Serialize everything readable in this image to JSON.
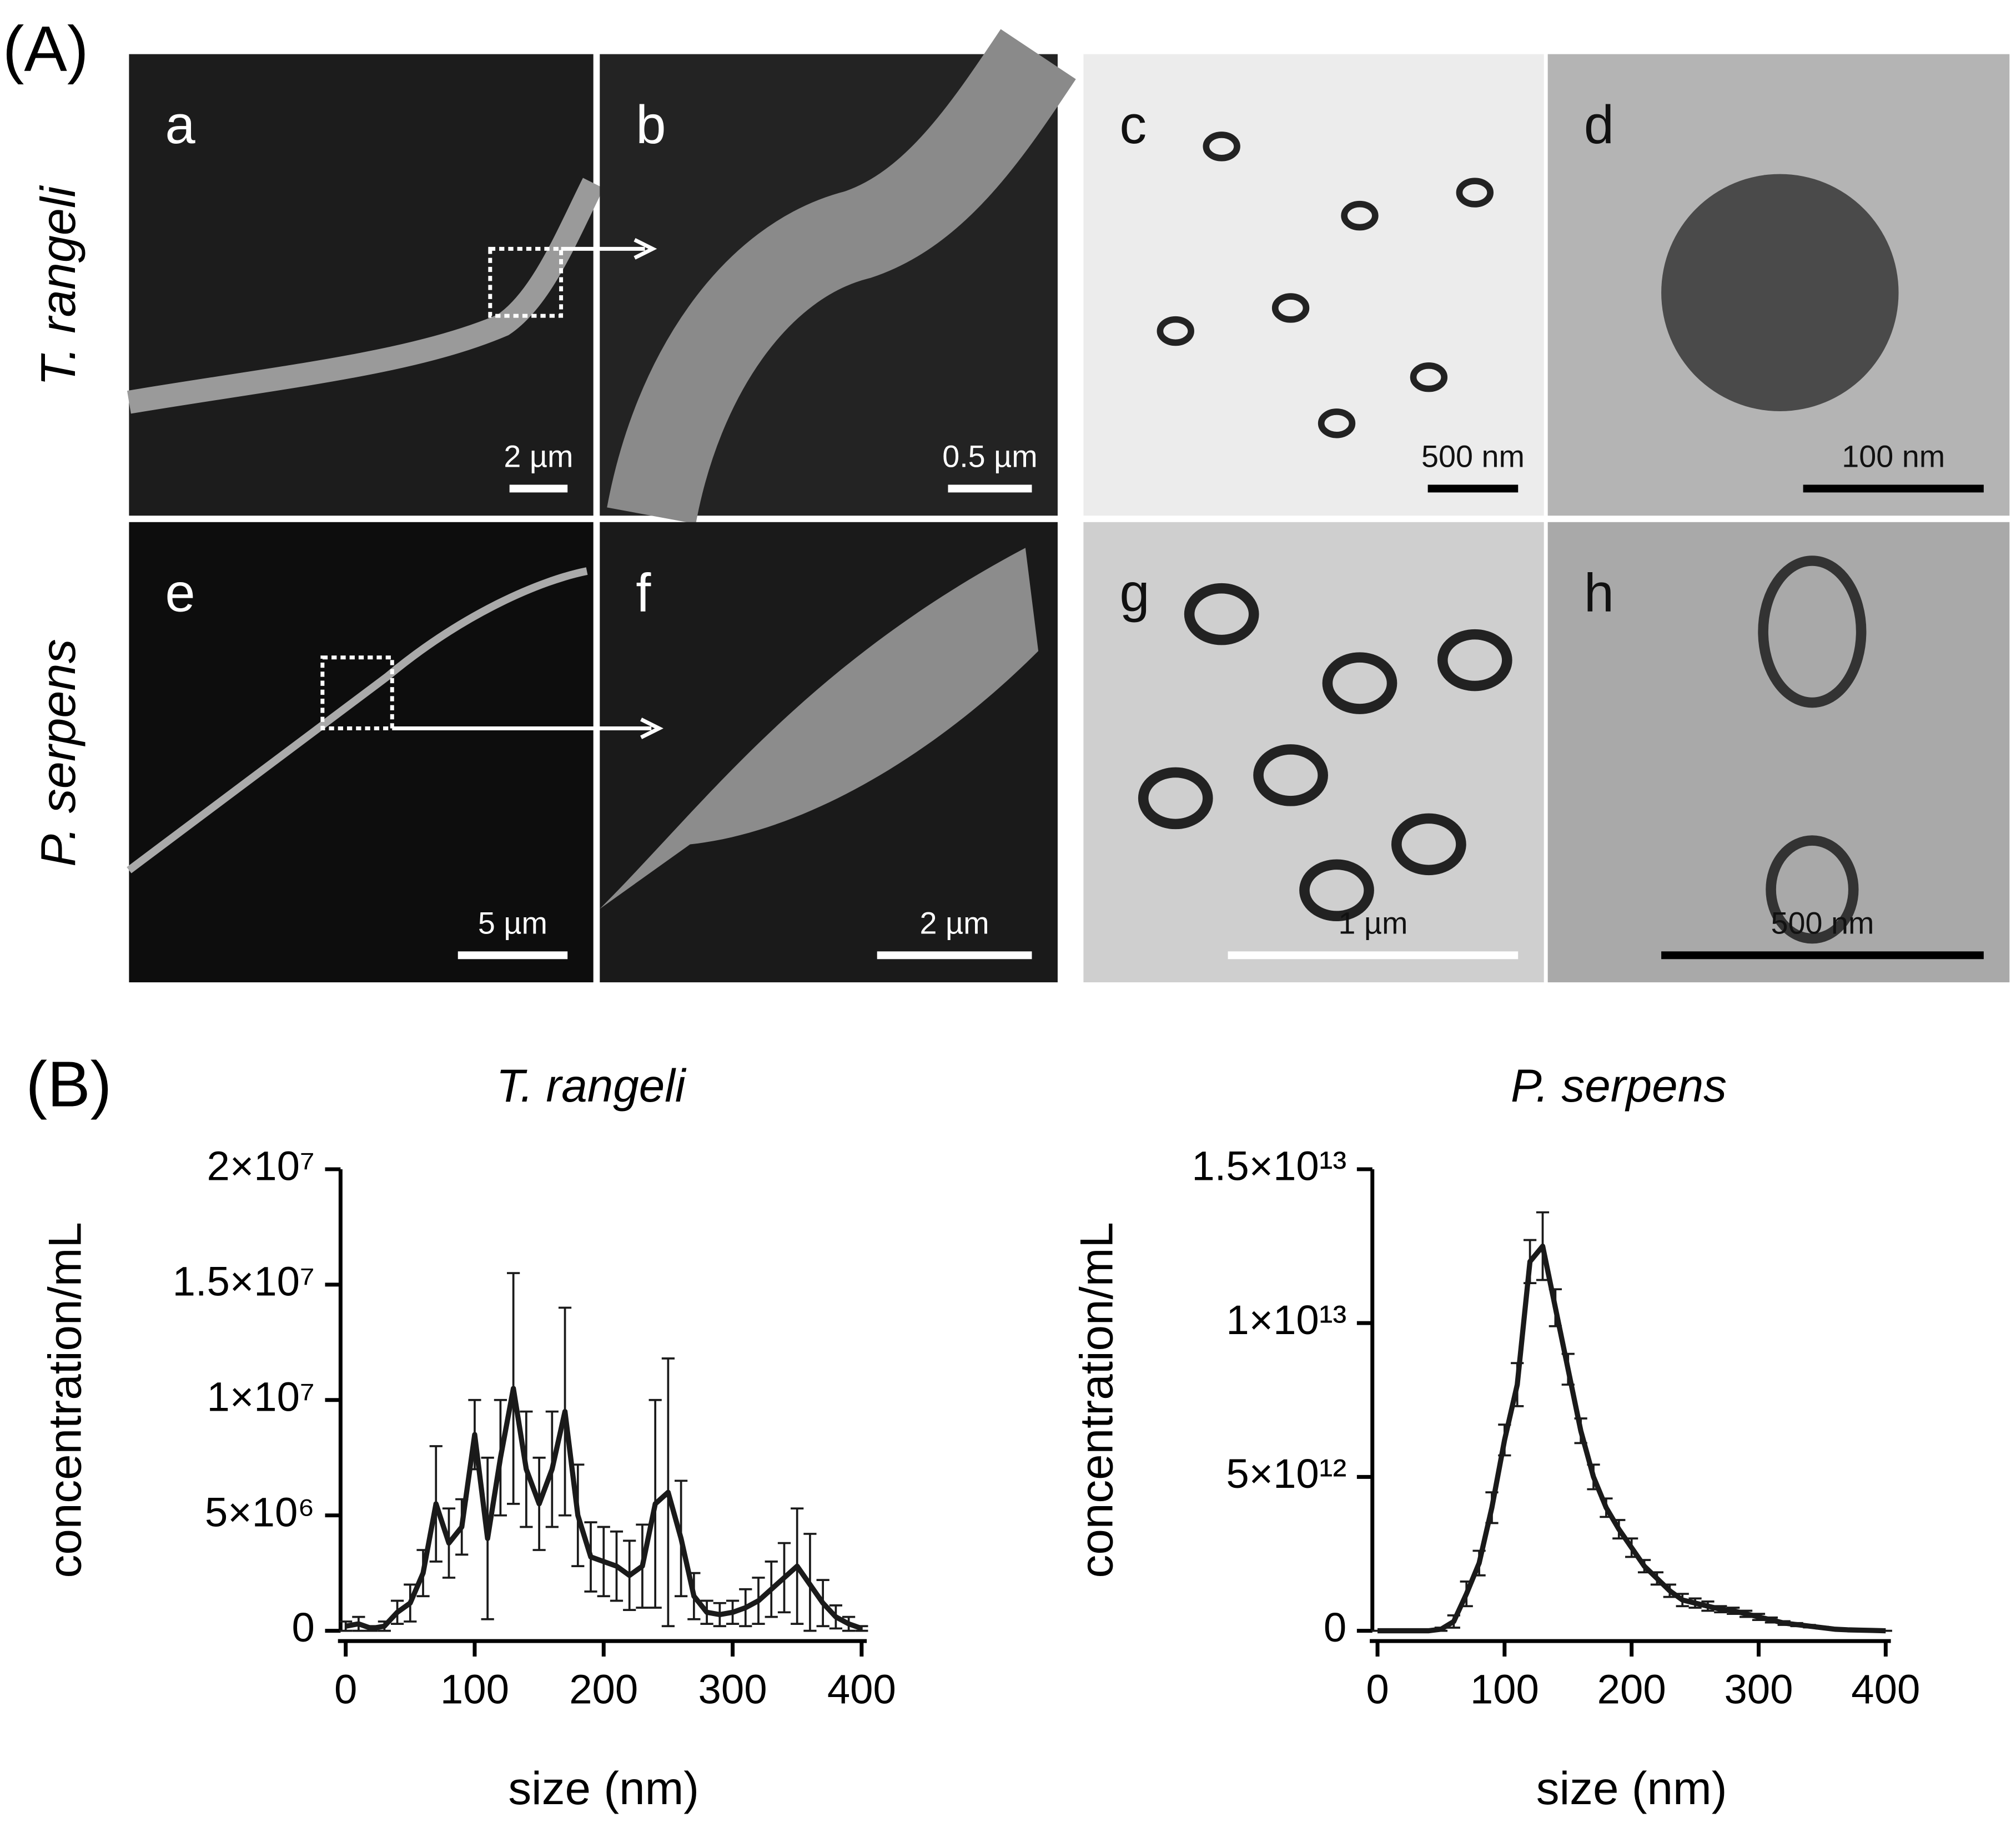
{
  "panel_a": {
    "label": "(A)",
    "rows": [
      "T. rangeli",
      "P. serpens"
    ],
    "panels": [
      {
        "letter": "a",
        "scale": "2 µm"
      },
      {
        "letter": "b",
        "scale": "0.5  µm"
      },
      {
        "letter": "c",
        "scale": "500  nm"
      },
      {
        "letter": "d",
        "scale": "100  nm"
      },
      {
        "letter": "e",
        "scale": "5 µm"
      },
      {
        "letter": "f",
        "scale": "2 µm"
      },
      {
        "letter": "g",
        "scale": "1 µm"
      },
      {
        "letter": "h",
        "scale": "500  nm"
      }
    ]
  },
  "panel_b": {
    "label": "(B)"
  },
  "chart_data": [
    {
      "type": "line",
      "title": "T. rangeli",
      "x_label": "size (nm)",
      "y_label": "concentration/mL",
      "x": [
        0,
        10,
        20,
        30,
        40,
        50,
        60,
        70,
        80,
        90,
        100,
        110,
        120,
        130,
        140,
        150,
        160,
        170,
        180,
        190,
        200,
        210,
        220,
        230,
        240,
        250,
        260,
        270,
        280,
        290,
        300,
        310,
        320,
        330,
        340,
        350,
        360,
        370,
        380,
        390,
        400
      ],
      "series": [
        {
          "color": "#1a1a1a",
          "values": [
            200000,
            300000,
            100000,
            200000,
            800000,
            1200000,
            2500000,
            5500000,
            3800000,
            4500000,
            8500000,
            4000000,
            7500000,
            10500000,
            7000000,
            5500000,
            7000000,
            9500000,
            5000000,
            3200000,
            3000000,
            2800000,
            2400000,
            2800000,
            5500000,
            6000000,
            4000000,
            1500000,
            800000,
            700000,
            800000,
            1000000,
            1300000,
            1800000,
            2300000,
            2800000,
            2000000,
            1200000,
            600000,
            300000,
            100000
          ],
          "errors": [
            200000,
            300000,
            100000,
            200000,
            500000,
            800000,
            1000000,
            2500000,
            1500000,
            1200000,
            1500000,
            3500000,
            2500000,
            5000000,
            2500000,
            2000000,
            2500000,
            4500000,
            2200000,
            1500000,
            1500000,
            1500000,
            1500000,
            1800000,
            4500000,
            5800000,
            2500000,
            1000000,
            500000,
            500000,
            500000,
            800000,
            1000000,
            1200000,
            1500000,
            2500000,
            2200000,
            1000000,
            500000,
            300000,
            100000
          ]
        }
      ],
      "xlim": [
        0,
        400
      ],
      "xticks": [
        0,
        100,
        200,
        300,
        400
      ],
      "ylim": [
        0,
        20000000
      ],
      "yticks": [
        0,
        {
          "value": 5000000,
          "label": "5×10⁶"
        },
        {
          "value": 10000000,
          "label": "1×10⁷"
        },
        {
          "value": 15000000,
          "label": "1.5×10⁷"
        },
        {
          "value": 20000000,
          "label": "2×10⁷"
        }
      ]
    },
    {
      "type": "line",
      "title": "P. serpens",
      "x_label": "size (nm)",
      "y_label": "concentration/mL",
      "x": [
        0,
        10,
        20,
        30,
        40,
        50,
        60,
        70,
        80,
        90,
        100,
        110,
        120,
        130,
        140,
        150,
        160,
        170,
        180,
        190,
        200,
        210,
        220,
        230,
        240,
        250,
        260,
        270,
        280,
        290,
        300,
        310,
        320,
        330,
        340,
        350,
        360,
        370,
        380,
        390,
        400
      ],
      "series": [
        {
          "color": "#1a1a1a",
          "values": [
            0,
            0,
            0,
            0,
            0,
            50000000000,
            300000000000,
            1200000000000,
            2200000000000,
            4000000000000,
            6200000000000,
            8000000000000,
            12000000000000,
            12500000000000,
            10500000000000,
            8500000000000,
            6500000000000,
            5000000000000,
            4000000000000,
            3300000000000,
            2700000000000,
            2100000000000,
            1700000000000,
            1300000000000,
            1000000000000,
            900000000000,
            800000000000,
            700000000000,
            650000000000,
            550000000000,
            450000000000,
            350000000000,
            250000000000,
            200000000000,
            150000000000,
            100000000000,
            50000000000,
            30000000000,
            20000000000,
            10000000000,
            0
          ],
          "errors": [
            0,
            0,
            0,
            0,
            0,
            50000000000,
            200000000000,
            400000000000,
            400000000000,
            500000000000,
            500000000000,
            700000000000,
            700000000000,
            1100000000000,
            600000000000,
            500000000000,
            400000000000,
            400000000000,
            300000000000,
            300000000000,
            300000000000,
            200000000000,
            200000000000,
            200000000000,
            200000000000,
            150000000000,
            150000000000,
            100000000000,
            100000000000,
            100000000000,
            100000000000,
            80000000000,
            60000000000,
            50000000000,
            40000000000,
            30000000000,
            20000000000,
            10000000000,
            10000000000,
            10000000000,
            0
          ]
        }
      ],
      "xlim": [
        0,
        400
      ],
      "xticks": [
        0,
        100,
        200,
        300,
        400
      ],
      "ylim": [
        0,
        15000000000000
      ],
      "yticks": [
        0,
        {
          "value": 5000000000000,
          "label": "5×10¹²"
        },
        {
          "value": 10000000000000,
          "label": "1×10¹³"
        },
        {
          "value": 15000000000000,
          "label": "1.5×10¹³"
        }
      ]
    }
  ]
}
